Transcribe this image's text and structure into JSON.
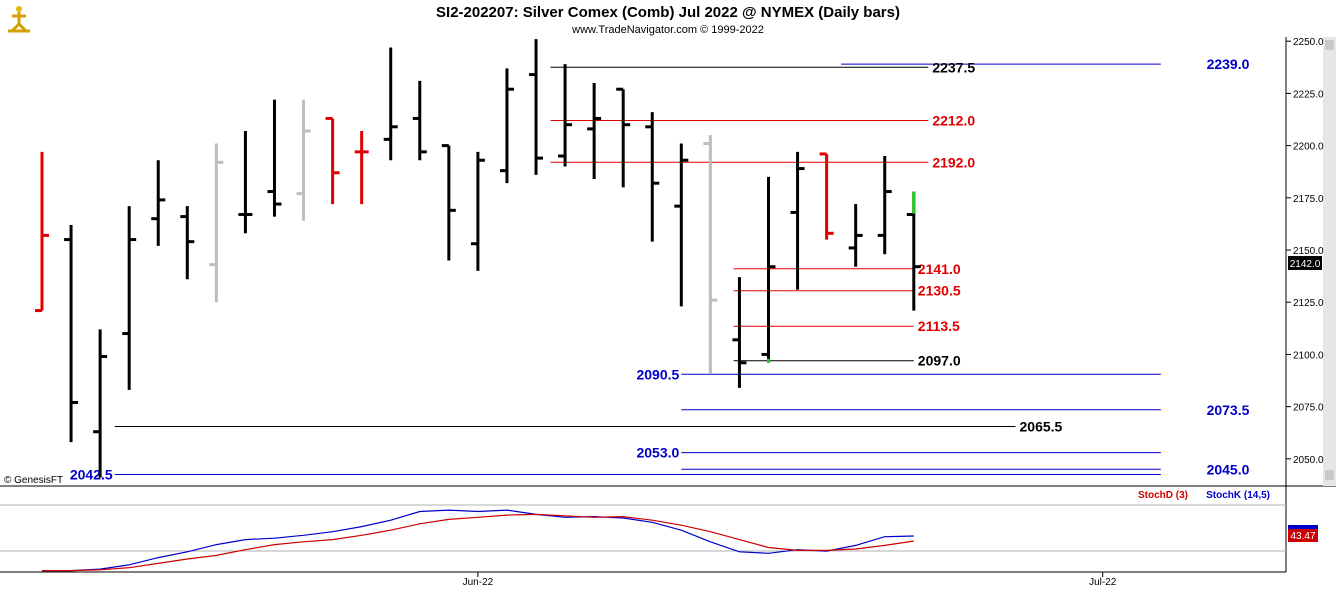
{
  "header": {
    "title": "SI2-202207:  Silver Comex (Comb) Jul 2022 @ NYMEX  (Daily bars)",
    "subtitle": "www.TradeNavigator.com © 1999-2022",
    "logo_icon": "gold-figure-logo-icon"
  },
  "watermark": "© GenesisFT",
  "last_price_label": "2142.0",
  "indicator": {
    "legend_d": "StochD (3)",
    "legend_k": "StochK (14,5)",
    "value_label": "43.47",
    "colors": {
      "d": "#cc0000",
      "k": "#0000cc"
    }
  },
  "colors": {
    "up": "#000000",
    "down_red": "#e00000",
    "gray": "#bdbdbd",
    "green": "#22cc22",
    "blue_line": "#0000cc",
    "red_line": "#e00000",
    "black_line": "#000000"
  },
  "chart_data": {
    "type": "ohlc",
    "ylim": [
      2037.0,
      2252.0
    ],
    "y_ticks": [
      "2050.0",
      "2075.0",
      "2100.0",
      "2125.0",
      "2150.0",
      "2175.0",
      "2200.0",
      "2225.0",
      "2250.0"
    ],
    "x_ticks": [
      "Jun-22",
      "Jul-22"
    ],
    "bars": [
      {
        "o": 2121,
        "h": 2197,
        "l": 2121,
        "c": 2157,
        "color": "red"
      },
      {
        "o": 2155,
        "h": 2162,
        "l": 2058,
        "c": 2077,
        "color": "black"
      },
      {
        "o": 2063,
        "h": 2112,
        "l": 2041,
        "c": 2099,
        "color": "black"
      },
      {
        "o": 2110,
        "h": 2171,
        "l": 2083,
        "c": 2155,
        "color": "black"
      },
      {
        "o": 2165,
        "h": 2193,
        "l": 2152,
        "c": 2174,
        "color": "black"
      },
      {
        "o": 2166,
        "h": 2171,
        "l": 2136,
        "c": 2154,
        "color": "black"
      },
      {
        "o": 2143,
        "h": 2201,
        "l": 2125,
        "c": 2192,
        "color": "gray"
      },
      {
        "o": 2167,
        "h": 2207,
        "l": 2158,
        "c": 2167,
        "color": "black"
      },
      {
        "o": 2178,
        "h": 2222,
        "l": 2166,
        "c": 2172,
        "color": "black"
      },
      {
        "o": 2177,
        "h": 2222,
        "l": 2164,
        "c": 2207,
        "color": "gray"
      },
      {
        "o": 2213,
        "h": 2213,
        "l": 2172,
        "c": 2187,
        "color": "red"
      },
      {
        "o": 2197,
        "h": 2207,
        "l": 2172,
        "c": 2197,
        "color": "red"
      },
      {
        "o": 2203,
        "h": 2247,
        "l": 2193,
        "c": 2209,
        "color": "black"
      },
      {
        "o": 2213,
        "h": 2231,
        "l": 2193,
        "c": 2197,
        "color": "black"
      },
      {
        "o": 2200,
        "h": 2200,
        "l": 2145,
        "c": 2169,
        "color": "black"
      },
      {
        "o": 2153,
        "h": 2197,
        "l": 2140,
        "c": 2193,
        "color": "black"
      },
      {
        "o": 2188,
        "h": 2237,
        "l": 2182,
        "c": 2227,
        "color": "black"
      },
      {
        "o": 2234,
        "h": 2251,
        "l": 2186,
        "c": 2194,
        "color": "black"
      },
      {
        "o": 2195,
        "h": 2239,
        "l": 2190,
        "c": 2210,
        "color": "black"
      },
      {
        "o": 2208,
        "h": 2230,
        "l": 2184,
        "c": 2213,
        "color": "black"
      },
      {
        "o": 2227,
        "h": 2227,
        "l": 2180,
        "c": 2210,
        "color": "black"
      },
      {
        "o": 2209,
        "h": 2216,
        "l": 2154,
        "c": 2182,
        "color": "black"
      },
      {
        "o": 2171,
        "h": 2201,
        "l": 2123,
        "c": 2193,
        "color": "black"
      },
      {
        "o": 2201,
        "h": 2205,
        "l": 2091,
        "c": 2126,
        "color": "gray"
      },
      {
        "o": 2107,
        "h": 2137,
        "l": 2084,
        "c": 2096,
        "color": "black"
      },
      {
        "o": 2100,
        "h": 2185,
        "l": 2096,
        "c": 2142,
        "color": "black",
        "low_tick": "green"
      },
      {
        "o": 2168,
        "h": 2197,
        "l": 2131,
        "c": 2189,
        "color": "black"
      },
      {
        "o": 2196,
        "h": 2196,
        "l": 2155,
        "c": 2158,
        "color": "red"
      },
      {
        "o": 2151,
        "h": 2172,
        "l": 2142,
        "c": 2157,
        "color": "black"
      },
      {
        "o": 2157,
        "h": 2195,
        "l": 2148,
        "c": 2178,
        "color": "black"
      },
      {
        "o": 2167,
        "h": 2178,
        "l": 2121,
        "c": 2142,
        "color": "black",
        "high_tick": "green"
      }
    ],
    "levels": [
      {
        "value": 2239.0,
        "label": "2239.0",
        "color": "blue",
        "x_start_bar": 27.5,
        "x_end_bar": 38.5,
        "label_side": "right_end"
      },
      {
        "value": 2237.5,
        "label": "2237.5",
        "color": "black",
        "x_start_bar": 17.5,
        "x_end_bar": 30.5,
        "label_side": "inline"
      },
      {
        "value": 2212.0,
        "label": "2212.0",
        "color": "red",
        "x_start_bar": 17.5,
        "x_end_bar": 30.5,
        "label_side": "inline"
      },
      {
        "value": 2192.0,
        "label": "2192.0",
        "color": "red",
        "x_start_bar": 17.5,
        "x_end_bar": 30.5,
        "label_side": "inline"
      },
      {
        "value": 2141.0,
        "label": "2141.0",
        "color": "red",
        "x_start_bar": 23.8,
        "x_end_bar": 30.0,
        "label_side": "inline"
      },
      {
        "value": 2130.5,
        "label": "2130.5",
        "color": "red",
        "x_start_bar": 23.8,
        "x_end_bar": 30.0,
        "label_side": "inline"
      },
      {
        "value": 2113.5,
        "label": "2113.5",
        "color": "red",
        "x_start_bar": 23.8,
        "x_end_bar": 30.0,
        "label_side": "inline"
      },
      {
        "value": 2097.0,
        "label": "2097.0",
        "color": "black",
        "x_start_bar": 23.8,
        "x_end_bar": 30.0,
        "label_side": "inline"
      },
      {
        "value": 2090.5,
        "label": "2090.5",
        "color": "blue",
        "x_start_bar": 22.0,
        "x_end_bar": 38.5,
        "label_side": "left"
      },
      {
        "value": 2073.5,
        "label": "2073.5",
        "color": "blue",
        "x_start_bar": 22.0,
        "x_end_bar": 38.5,
        "label_side": "right_end"
      },
      {
        "value": 2065.5,
        "label": "2065.5",
        "color": "black",
        "x_start_bar": 2.5,
        "x_end_bar": 33.5,
        "label_side": "inline"
      },
      {
        "value": 2053.0,
        "label": "2053.0",
        "color": "blue",
        "x_start_bar": 22.0,
        "x_end_bar": 38.5,
        "label_side": "left"
      },
      {
        "value": 2045.0,
        "label": "2045.0",
        "color": "blue",
        "x_start_bar": 22.0,
        "x_end_bar": 38.5,
        "label_side": "right_end"
      },
      {
        "value": 2042.5,
        "label": "2042.5",
        "color": "blue",
        "x_start_bar": 2.5,
        "x_end_bar": 38.5,
        "label_side": "left"
      }
    ],
    "stoch": {
      "ylim": [
        0,
        100
      ],
      "stoch_d": [
        2,
        2,
        3,
        6,
        12,
        18,
        23,
        31,
        38,
        42,
        45,
        51,
        58,
        67,
        73,
        76,
        79,
        80,
        78,
        76,
        77,
        72,
        65,
        56,
        45,
        34,
        30,
        30,
        32,
        37,
        43
      ],
      "stoch_k": [
        2,
        2,
        4,
        10,
        20,
        28,
        38,
        45,
        47,
        51,
        56,
        63,
        72,
        84,
        86,
        84,
        86,
        80,
        76,
        77,
        75,
        69,
        58,
        42,
        28,
        26,
        31,
        29,
        37,
        49,
        50
      ]
    }
  }
}
